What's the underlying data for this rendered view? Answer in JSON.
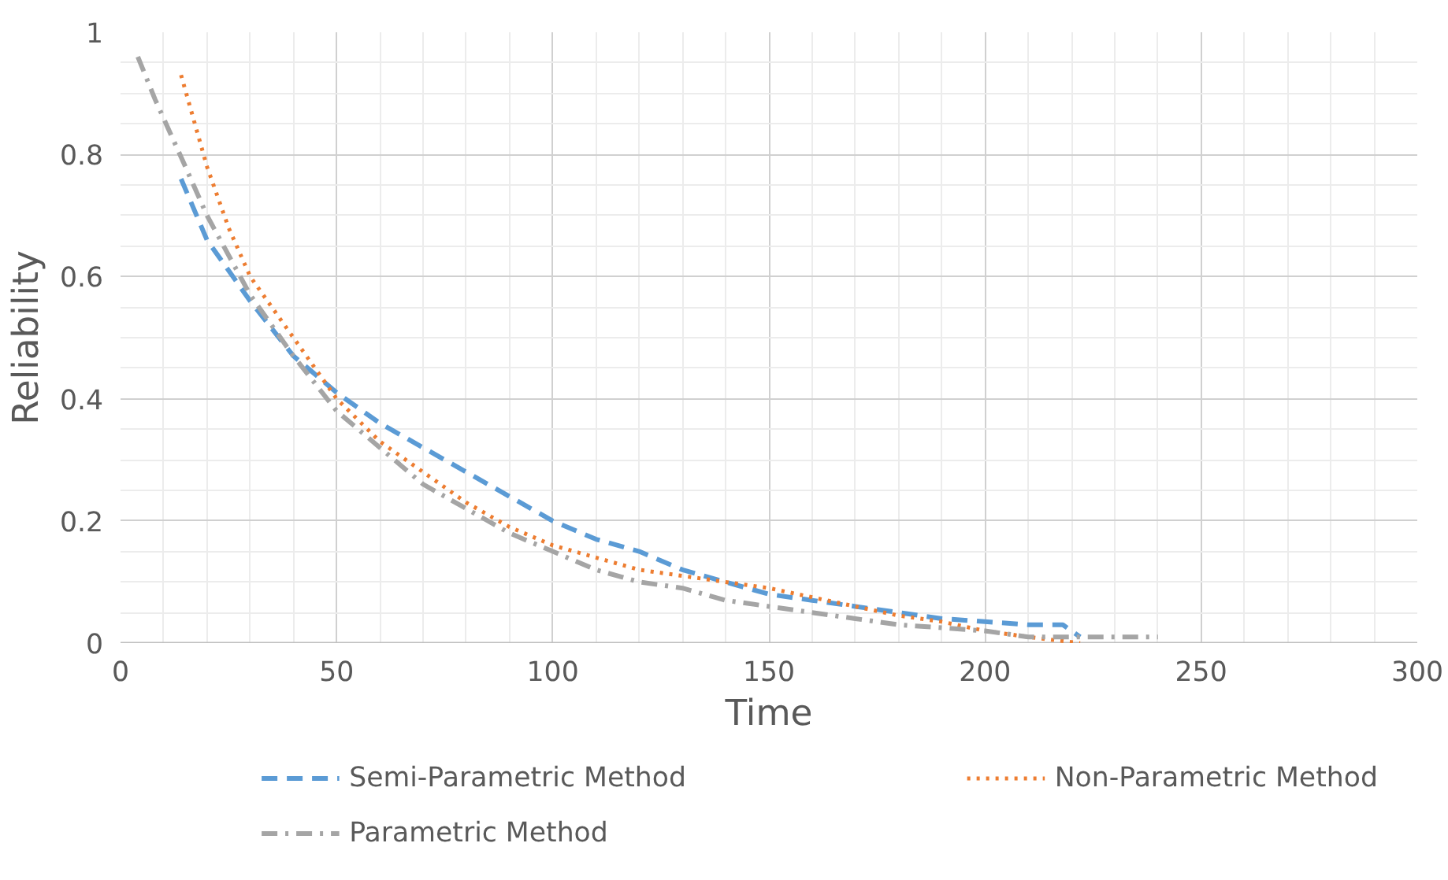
{
  "chart_data": {
    "type": "line",
    "xlabel": "Time",
    "ylabel": "Reliability",
    "xlim": [
      0,
      300
    ],
    "ylim": [
      0,
      1
    ],
    "xticks": [
      0,
      50,
      100,
      150,
      200,
      250,
      300
    ],
    "yticks": [
      0,
      0.2,
      0.4,
      0.6,
      0.8,
      1
    ],
    "grid": true,
    "legend": "bottom",
    "marker": "none",
    "series": [
      {
        "name": "Semi-Parametric Method",
        "color": "#5b9bd5",
        "line_style": "dashed",
        "x": [
          14,
          20,
          30,
          40,
          50,
          60,
          70,
          80,
          90,
          100,
          110,
          120,
          130,
          140,
          150,
          160,
          170,
          180,
          190,
          200,
          210,
          218,
          222
        ],
        "values": [
          0.76,
          0.66,
          0.56,
          0.47,
          0.41,
          0.36,
          0.32,
          0.28,
          0.24,
          0.2,
          0.17,
          0.15,
          0.12,
          0.1,
          0.08,
          0.07,
          0.06,
          0.05,
          0.04,
          0.035,
          0.03,
          0.03,
          0.01
        ]
      },
      {
        "name": "Non-Parametric Method",
        "color": "#ed7d31",
        "line_style": "dotted",
        "x": [
          14,
          20,
          25,
          30,
          40,
          50,
          60,
          70,
          80,
          90,
          100,
          110,
          120,
          130,
          140,
          150,
          160,
          170,
          180,
          190,
          200,
          210,
          222
        ],
        "values": [
          0.93,
          0.78,
          0.68,
          0.6,
          0.5,
          0.4,
          0.33,
          0.28,
          0.23,
          0.19,
          0.16,
          0.14,
          0.12,
          0.11,
          0.1,
          0.09,
          0.075,
          0.06,
          0.045,
          0.035,
          0.02,
          0.01,
          0
        ]
      },
      {
        "name": "Parametric Method",
        "color": "#a5a5a5",
        "line_style": "dashdot",
        "x": [
          4,
          8,
          15,
          20,
          30,
          40,
          50,
          60,
          70,
          80,
          90,
          100,
          110,
          120,
          130,
          140,
          150,
          160,
          170,
          180,
          190,
          200,
          210,
          220,
          230,
          240
        ],
        "values": [
          0.96,
          0.89,
          0.78,
          0.7,
          0.57,
          0.47,
          0.38,
          0.32,
          0.26,
          0.22,
          0.18,
          0.15,
          0.12,
          0.1,
          0.09,
          0.07,
          0.06,
          0.05,
          0.04,
          0.03,
          0.025,
          0.02,
          0.01,
          0.01,
          0.01,
          0.01
        ]
      }
    ]
  }
}
